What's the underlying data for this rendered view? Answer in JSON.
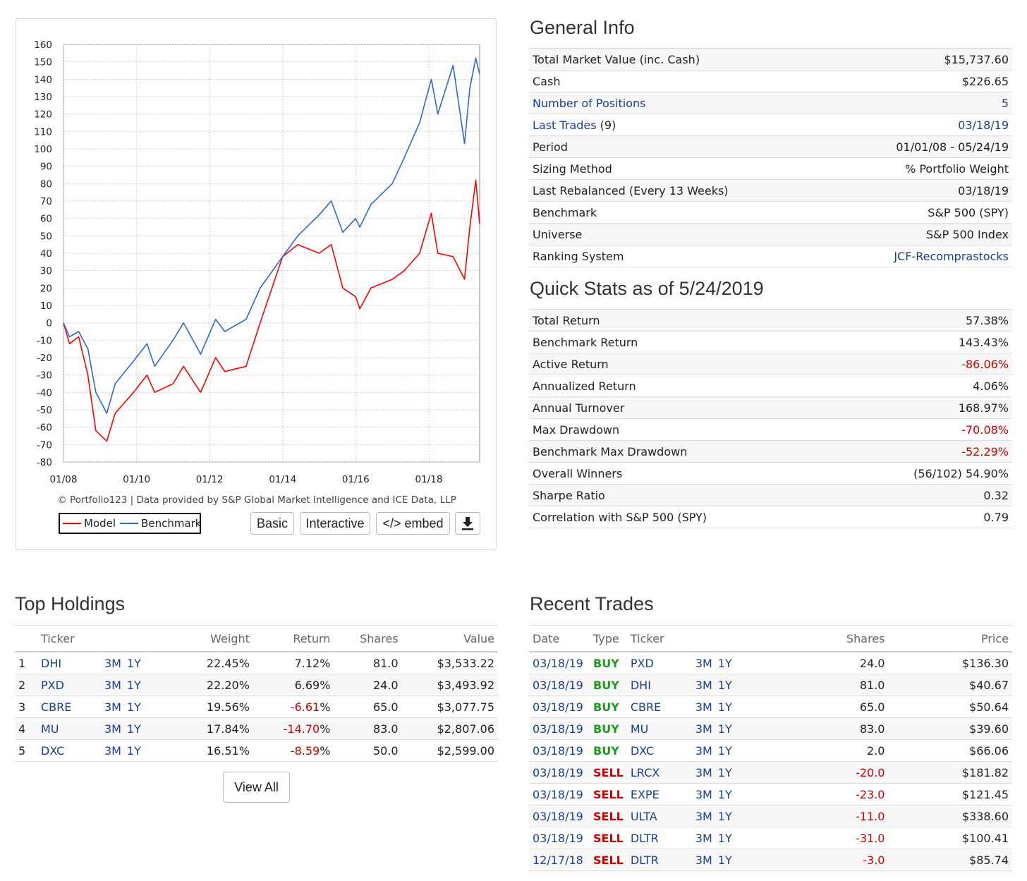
{
  "chart_data": {
    "type": "line",
    "x_ticks": [
      "01/08",
      "01/10",
      "01/12",
      "01/14",
      "01/16",
      "01/18"
    ],
    "y_ticks": [
      160,
      150,
      140,
      130,
      120,
      110,
      100,
      90,
      80,
      70,
      60,
      50,
      40,
      30,
      20,
      10,
      0,
      -10,
      -20,
      -30,
      -40,
      -50,
      -60,
      -70,
      -80
    ],
    "ylim": [
      -80,
      160
    ],
    "xlim": [
      "2008-01-01",
      "2019-05-24"
    ],
    "grid": true,
    "legend": "bottom-left",
    "series": [
      {
        "name": "Model",
        "color": "#ff0000",
        "points": [
          [
            "2008-01-01",
            0
          ],
          [
            "2008-03-01",
            -12
          ],
          [
            "2008-06-01",
            -8
          ],
          [
            "2008-09-01",
            -30
          ],
          [
            "2008-11-20",
            -62
          ],
          [
            "2009-03-09",
            -68
          ],
          [
            "2009-06-01",
            -52
          ],
          [
            "2009-12-01",
            -40
          ],
          [
            "2010-04-15",
            -30
          ],
          [
            "2010-07-01",
            -40
          ],
          [
            "2010-12-31",
            -35
          ],
          [
            "2011-04-15",
            -25
          ],
          [
            "2011-10-03",
            -40
          ],
          [
            "2012-03-01",
            -20
          ],
          [
            "2012-06-01",
            -28
          ],
          [
            "2012-12-31",
            -25
          ],
          [
            "2013-05-20",
            0
          ],
          [
            "2013-12-31",
            38
          ],
          [
            "2014-06-01",
            45
          ],
          [
            "2014-12-31",
            40
          ],
          [
            "2015-05-01",
            45
          ],
          [
            "2015-08-25",
            20
          ],
          [
            "2015-12-31",
            15
          ],
          [
            "2016-02-11",
            8
          ],
          [
            "2016-06-01",
            20
          ],
          [
            "2016-12-31",
            25
          ],
          [
            "2017-05-01",
            30
          ],
          [
            "2017-10-01",
            40
          ],
          [
            "2018-01-26",
            63
          ],
          [
            "2018-04-01",
            40
          ],
          [
            "2018-09-01",
            38
          ],
          [
            "2018-12-24",
            25
          ],
          [
            "2019-02-15",
            55
          ],
          [
            "2019-04-15",
            82
          ],
          [
            "2019-05-24",
            57
          ]
        ]
      },
      {
        "name": "Benchmark",
        "color": "#3366cc",
        "points": [
          [
            "2008-01-01",
            0
          ],
          [
            "2008-03-01",
            -8
          ],
          [
            "2008-06-01",
            -5
          ],
          [
            "2008-09-01",
            -15
          ],
          [
            "2008-11-20",
            -40
          ],
          [
            "2009-03-09",
            -52
          ],
          [
            "2009-06-01",
            -35
          ],
          [
            "2009-12-01",
            -22
          ],
          [
            "2010-04-15",
            -12
          ],
          [
            "2010-07-01",
            -25
          ],
          [
            "2010-12-31",
            -10
          ],
          [
            "2011-04-15",
            0
          ],
          [
            "2011-10-03",
            -18
          ],
          [
            "2012-03-01",
            2
          ],
          [
            "2012-06-01",
            -5
          ],
          [
            "2012-12-31",
            2
          ],
          [
            "2013-05-20",
            20
          ],
          [
            "2013-12-31",
            38
          ],
          [
            "2014-06-01",
            50
          ],
          [
            "2014-12-31",
            62
          ],
          [
            "2015-05-01",
            70
          ],
          [
            "2015-08-25",
            52
          ],
          [
            "2015-12-31",
            60
          ],
          [
            "2016-02-11",
            55
          ],
          [
            "2016-06-01",
            68
          ],
          [
            "2016-12-31",
            80
          ],
          [
            "2017-05-01",
            95
          ],
          [
            "2017-10-01",
            115
          ],
          [
            "2018-01-26",
            140
          ],
          [
            "2018-04-01",
            120
          ],
          [
            "2018-09-01",
            148
          ],
          [
            "2018-12-24",
            103
          ],
          [
            "2019-02-15",
            135
          ],
          [
            "2019-04-15",
            152
          ],
          [
            "2019-05-24",
            143
          ]
        ]
      }
    ]
  },
  "chart": {
    "credit": "© Portfolio123 | Data provided by S&P Global Market Intelligence and ICE Data, LLP",
    "legend_model": "Model",
    "legend_benchmark": "Benchmark",
    "btn_basic": "Basic",
    "btn_interactive": "Interactive",
    "btn_embed": "</> embed",
    "download_icon": "download-icon"
  },
  "general_info": {
    "title": "General Info",
    "rows": [
      {
        "label": "Total Market Value (inc. Cash)",
        "value": "$15,737.60"
      },
      {
        "label": "Cash",
        "value": "$226.65"
      },
      {
        "label": "Number of Positions",
        "value": "5",
        "link": true
      },
      {
        "label": "Last Trades",
        "suffix": " (9)",
        "value": "03/18/19",
        "link": true
      },
      {
        "label": "Period",
        "value": "01/01/08 - 05/24/19"
      },
      {
        "label": "Sizing Method",
        "value": "% Portfolio Weight"
      },
      {
        "label": "Last Rebalanced (Every 13 Weeks)",
        "value": "03/18/19"
      },
      {
        "label": "Benchmark",
        "value": "S&P 500 (SPY)"
      },
      {
        "label": "Universe",
        "value": "S&P 500 Index"
      },
      {
        "label": "Ranking System",
        "value": "JCF-Recomprastocks",
        "value_link": true
      }
    ]
  },
  "quick_stats": {
    "title": "Quick Stats as of 5/24/2019",
    "rows": [
      {
        "label": "Total Return",
        "value": "57.38%"
      },
      {
        "label": "Benchmark Return",
        "value": "143.43%"
      },
      {
        "label": "Active Return",
        "value": "-86.06%",
        "neg": true
      },
      {
        "label": "Annualized Return",
        "value": "4.06%"
      },
      {
        "label": "Annual Turnover",
        "value": "168.97%"
      },
      {
        "label": "Max Drawdown",
        "value": "-70.08%",
        "neg": true
      },
      {
        "label": "Benchmark Max Drawdown",
        "value": "-52.29%",
        "neg": true
      },
      {
        "label": "Overall Winners",
        "value": "(56/102) 54.90%"
      },
      {
        "label": "Sharpe Ratio",
        "value": "0.32"
      },
      {
        "label": "Correlation with S&P 500 (SPY)",
        "value": "0.79"
      }
    ]
  },
  "top_holdings": {
    "title": "Top Holdings",
    "headers": {
      "ticker": "Ticker",
      "weight": "Weight",
      "return": "Return",
      "shares": "Shares",
      "value": "Value"
    },
    "link_3m": "3M",
    "link_1y": "1Y",
    "rows": [
      {
        "rank": "1",
        "ticker": "DHI",
        "weight": "22.45%",
        "ret": "7.12",
        "pct": "%",
        "neg": false,
        "shares": "81.0",
        "value": "$3,533.22"
      },
      {
        "rank": "2",
        "ticker": "PXD",
        "weight": "22.20%",
        "ret": "6.69",
        "pct": "%",
        "neg": false,
        "shares": "24.0",
        "value": "$3,493.92"
      },
      {
        "rank": "3",
        "ticker": "CBRE",
        "weight": "19.56%",
        "ret": "-6.61",
        "pct": "%",
        "neg": true,
        "shares": "65.0",
        "value": "$3,077.75"
      },
      {
        "rank": "4",
        "ticker": "MU",
        "weight": "17.84%",
        "ret": "-14.70",
        "pct": "%",
        "neg": true,
        "shares": "83.0",
        "value": "$2,807.06"
      },
      {
        "rank": "5",
        "ticker": "DXC",
        "weight": "16.51%",
        "ret": "-8.59",
        "pct": "%",
        "neg": true,
        "shares": "50.0",
        "value": "$2,599.00"
      }
    ],
    "view_all": "View All"
  },
  "recent_trades": {
    "title": "Recent Trades",
    "headers": {
      "date": "Date",
      "type": "Type",
      "ticker": "Ticker",
      "shares": "Shares",
      "price": "Price"
    },
    "rows": [
      {
        "date": "03/18/19",
        "type": "BUY",
        "ticker": "PXD",
        "shares": "24.0",
        "price": "$136.30"
      },
      {
        "date": "03/18/19",
        "type": "BUY",
        "ticker": "DHI",
        "shares": "81.0",
        "price": "$40.67"
      },
      {
        "date": "03/18/19",
        "type": "BUY",
        "ticker": "CBRE",
        "shares": "65.0",
        "price": "$50.64"
      },
      {
        "date": "03/18/19",
        "type": "BUY",
        "ticker": "MU",
        "shares": "83.0",
        "price": "$39.60"
      },
      {
        "date": "03/18/19",
        "type": "BUY",
        "ticker": "DXC",
        "shares": "2.0",
        "price": "$66.06"
      },
      {
        "date": "03/18/19",
        "type": "SELL",
        "ticker": "LRCX",
        "shares": "-20.0",
        "price": "$181.82"
      },
      {
        "date": "03/18/19",
        "type": "SELL",
        "ticker": "EXPE",
        "shares": "-23.0",
        "price": "$121.45"
      },
      {
        "date": "03/18/19",
        "type": "SELL",
        "ticker": "ULTA",
        "shares": "-11.0",
        "price": "$338.60"
      },
      {
        "date": "03/18/19",
        "type": "SELL",
        "ticker": "DLTR",
        "shares": "-31.0",
        "price": "$100.41"
      },
      {
        "date": "12/17/18",
        "type": "SELL",
        "ticker": "DLTR",
        "shares": "-3.0",
        "price": "$85.74"
      }
    ]
  }
}
